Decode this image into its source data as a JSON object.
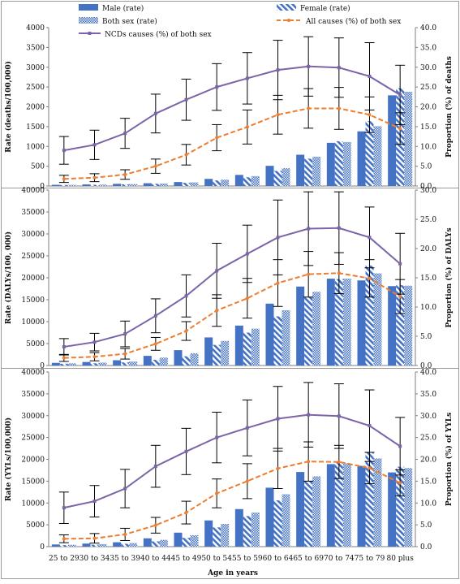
{
  "colors": {
    "male": "#4472c4",
    "female_stripe": "#4472c4",
    "both_dot": "#4472c4",
    "ncd_line": "#7b64a8",
    "all_line": "#ed7d31",
    "error_bar": "#000000",
    "frame": "#9a9a9a"
  },
  "legend": {
    "male": "Male (rate)",
    "female": "Female (rate)",
    "both": "Both sex (rate)",
    "all": "All causes (%) of both sex",
    "ncd": "NCDs causes (%) of both sex"
  },
  "x_axis_title": "Age in years",
  "chart_data": [
    {
      "type": "bar",
      "panel": "deaths",
      "categories": [
        "25 to 29",
        "30 to 34",
        "35 to 39",
        "40 to 44",
        "45 to 49",
        "50 to 54",
        "55 to 59",
        "60 to 64",
        "65 to 69",
        "70 to 74",
        "75 to 79",
        "80 plus"
      ],
      "ylabel_left": "Rate (deaths/100,000)",
      "ylabel_right": "Proportion (%) of deaths",
      "ylim_left": [
        0,
        4000
      ],
      "ylim_right": [
        0,
        40
      ],
      "yticks_left": [
        "0",
        "500",
        "1000",
        "1500",
        "2000",
        "2500",
        "3000",
        "3500",
        "4000"
      ],
      "yticks_right": [
        "0.0",
        "5.0",
        "10.0",
        "15.0",
        "20.0",
        "25.0",
        "30.0",
        "35.0",
        "40.0"
      ],
      "series": [
        {
          "name": "Male (rate)",
          "values": [
            30,
            40,
            55,
            70,
            100,
            180,
            280,
            510,
            790,
            1090,
            1380,
            2290
          ]
        },
        {
          "name": "Female (rate)",
          "values": [
            25,
            30,
            40,
            55,
            80,
            140,
            220,
            380,
            690,
            1130,
            1640,
            2470
          ]
        },
        {
          "name": "Both sex (rate)",
          "values": [
            28,
            35,
            48,
            62,
            90,
            160,
            250,
            450,
            740,
            1110,
            1510,
            2380
          ]
        }
      ],
      "lines": [
        {
          "name": "NCDs causes (%) of both sex",
          "values": [
            9.0,
            10.4,
            13.3,
            18.3,
            21.8,
            25.0,
            27.2,
            29.3,
            30.2,
            29.9,
            27.7,
            23.0
          ],
          "err": [
            3.5,
            3.7,
            3.8,
            4.9,
            5.2,
            5.9,
            6.5,
            7.5,
            7.5,
            7.5,
            8.5,
            7.5
          ]
        },
        {
          "name": "All causes (%) of both sex",
          "values": [
            1.8,
            2.1,
            2.9,
            5.0,
            7.9,
            12.2,
            14.9,
            18.0,
            19.6,
            19.6,
            18.0,
            14.5
          ],
          "err": [
            0.9,
            1.0,
            1.2,
            1.8,
            2.6,
            3.3,
            4.3,
            4.9,
            5.0,
            5.3,
            4.5,
            4.0
          ]
        }
      ]
    },
    {
      "type": "bar",
      "panel": "dalys",
      "categories": [
        "25 to 29",
        "30 to 34",
        "35 to 39",
        "40 to 44",
        "45 to 49",
        "50 to 54",
        "55 to 59",
        "60 to 64",
        "65 to 69",
        "70 to 74",
        "75 to 79",
        "80 plus"
      ],
      "ylabel_left": "Rate (DALYs/100, 000)",
      "ylabel_right": "Proportion (%) of DALYs",
      "ylim_left": [
        0,
        40000
      ],
      "ylim_right": [
        0,
        30
      ],
      "yticks_left": [
        "0",
        "5000",
        "10000",
        "15000",
        "20000",
        "25000",
        "30000",
        "35000",
        "40000"
      ],
      "yticks_right": [
        "0.0",
        "5.0",
        "10.0",
        "15.0",
        "20.0",
        "25.0",
        "30.0"
      ],
      "series": [
        {
          "name": "Male (rate)",
          "values": [
            600,
            800,
            1200,
            2200,
            3500,
            6400,
            9100,
            14100,
            18000,
            19800,
            19400,
            18100
          ]
        },
        {
          "name": "Female (rate)",
          "values": [
            400,
            500,
            700,
            1300,
            2100,
            4700,
            7500,
            11200,
            15600,
            19700,
            22800,
            18300
          ]
        },
        {
          "name": "Both sex (rate)",
          "values": [
            500,
            650,
            900,
            1800,
            2800,
            5600,
            8400,
            12600,
            16800,
            19800,
            21000,
            18200
          ]
        }
      ],
      "lines": [
        {
          "name": "NCDs causes (%) of both sex",
          "values": [
            3.2,
            4.0,
            5.4,
            8.5,
            11.9,
            16.2,
            19.1,
            21.9,
            23.4,
            23.5,
            21.9,
            17.4
          ],
          "err": [
            1.4,
            1.5,
            2.2,
            2.9,
            3.6,
            4.7,
            4.9,
            6.4,
            6.3,
            6.2,
            5.2,
            5.2
          ]
        },
        {
          "name": "All causes (%) of both sex",
          "values": [
            1.3,
            1.5,
            2.0,
            3.7,
            5.9,
            9.4,
            11.5,
            14.1,
            15.6,
            15.8,
            14.9,
            11.8
          ],
          "err": [
            0.6,
            0.7,
            0.9,
            1.1,
            1.6,
            2.7,
            3.4,
            4.0,
            3.9,
            3.5,
            3.2,
            2.9
          ]
        }
      ]
    },
    {
      "type": "bar",
      "panel": "ylls",
      "categories": [
        "25 to 29",
        "30 to 34",
        "35 to 39",
        "40 to 44",
        "45 to 49",
        "50 to 54",
        "55 to 59",
        "60 to 64",
        "65 to 69",
        "70 to 74",
        "75 to 79",
        "80 plus"
      ],
      "ylabel_left": "Rate (YYLs/100,000)",
      "ylabel_right": "Proportion (%) of YYLs",
      "ylim_left": [
        0,
        40000
      ],
      "ylim_right": [
        0,
        40
      ],
      "yticks_left": [
        "0",
        "5000",
        "10000",
        "15000",
        "20000",
        "25000",
        "30000",
        "35000",
        "40000"
      ],
      "yticks_right": [
        "0.0",
        "5.0",
        "10.0",
        "15.0",
        "20.0",
        "25.0",
        "30.0",
        "35.0",
        "40.0"
      ],
      "series": [
        {
          "name": "Male (rate)",
          "values": [
            500,
            700,
            1000,
            1900,
            3200,
            6000,
            8600,
            13500,
            17100,
            18900,
            18500,
            17000
          ]
        },
        {
          "name": "Female (rate)",
          "values": [
            350,
            450,
            650,
            1200,
            2000,
            4400,
            7000,
            10600,
            15000,
            19300,
            21600,
            18300
          ]
        },
        {
          "name": "Both sex (rate)",
          "values": [
            420,
            580,
            820,
            1550,
            2600,
            5200,
            7800,
            12000,
            16100,
            19100,
            20200,
            18000
          ]
        }
      ],
      "lines": [
        {
          "name": "NCDs causes (%) of both sex",
          "values": [
            8.9,
            10.4,
            13.3,
            18.4,
            21.8,
            25.0,
            27.2,
            29.3,
            30.2,
            29.9,
            27.7,
            23.0
          ],
          "err": [
            3.6,
            3.6,
            4.4,
            4.8,
            5.3,
            5.8,
            6.4,
            7.4,
            7.4,
            7.4,
            8.2,
            6.6
          ]
        },
        {
          "name": "All causes (%) of both sex",
          "values": [
            1.8,
            1.9,
            2.8,
            4.9,
            7.8,
            12.2,
            15.0,
            17.9,
            19.5,
            19.4,
            18.0,
            14.6
          ],
          "err": [
            0.9,
            1.1,
            1.4,
            1.8,
            2.6,
            3.3,
            4.0,
            4.6,
            4.5,
            3.8,
            3.6,
            3.0
          ]
        }
      ]
    }
  ]
}
